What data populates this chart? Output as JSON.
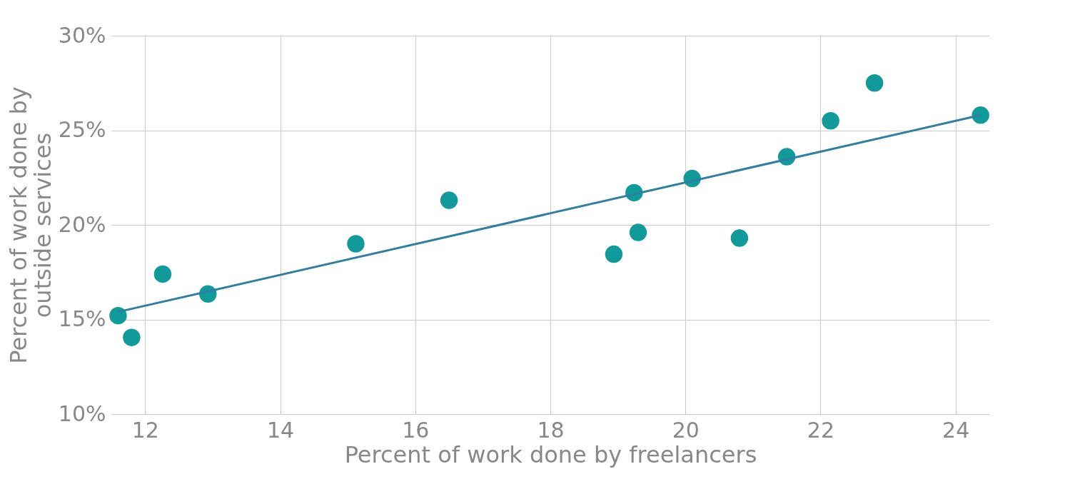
{
  "chart_data": {
    "type": "scatter",
    "xlabel": "Percent of work done by freelancers",
    "ylabel": "Percent of work done by outside services",
    "xlim": [
      11.5,
      24.5
    ],
    "xticks": [
      12,
      14,
      16,
      18,
      20,
      22,
      24
    ],
    "ylim": [
      10,
      30
    ],
    "yticks": [
      {
        "value": 10,
        "label": "10%"
      },
      {
        "value": 15,
        "label": "15%"
      },
      {
        "value": 20,
        "label": "20%"
      },
      {
        "value": 25,
        "label": "25%"
      },
      {
        "value": 30,
        "label": "30%"
      }
    ],
    "grid": true,
    "series": [
      {
        "marker": "circle",
        "color": "#119a9a",
        "x": [
          11.6,
          11.8,
          12.26,
          12.93,
          15.12,
          16.5,
          18.94,
          19.24,
          19.3,
          20.1,
          20.8,
          21.5,
          22.15,
          22.8,
          24.37
        ],
        "values": [
          15.2,
          14.05,
          17.4,
          16.35,
          19.0,
          21.3,
          18.45,
          21.7,
          19.6,
          22.45,
          19.3,
          23.6,
          25.5,
          27.5,
          25.8
        ]
      },
      {
        "type": "line",
        "color": "#2e7fa0",
        "x": [
          11.6,
          24.37
        ],
        "values": [
          15.4,
          25.8
        ]
      }
    ]
  }
}
